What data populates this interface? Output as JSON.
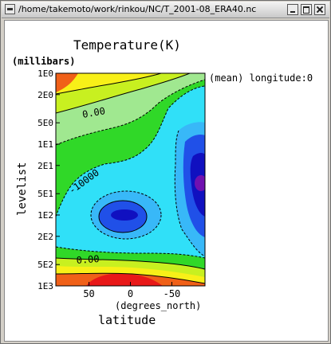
{
  "window": {
    "title": "/home/takemoto/work/rinkou/NC/T_2001-08_ERA40.nc",
    "icons": [
      "window-menu-icon",
      "minimize-icon",
      "maximize-icon",
      "close-icon"
    ]
  },
  "plot": {
    "title": "Temperature(K)",
    "y_unit": "(millibars)",
    "y_label": "levelist",
    "x_unit": "(degrees_north)",
    "x_label": "latitude",
    "note": "(mean) longitude:0",
    "contour_labels": [
      "0.00",
      "-10000",
      "0.00"
    ],
    "colors": {
      "orange": "#f06018",
      "yellow": "#f8f018",
      "yellowgreen": "#c8f020",
      "green": "#30d828",
      "lightgreen": "#a0e890",
      "cyan": "#30e0f8",
      "skyblue": "#38b8f8",
      "blue": "#2050e8",
      "navy": "#1010c0",
      "purple": "#7010b0",
      "red": "#e81818"
    }
  },
  "chart_data": {
    "type": "heatmap",
    "title": "Temperature(K)",
    "xlabel": "latitude",
    "ylabel": "levelist",
    "x_tick_labels": [
      "50",
      "0",
      "-50"
    ],
    "y_tick_labels": [
      "1E0",
      "2E0",
      "5E0",
      "1E1",
      "2E1",
      "5E1",
      "1E2",
      "2E2",
      "5E2",
      "1E3"
    ],
    "y_scale": "log",
    "ylim": [
      1000,
      1
    ],
    "xlim": [
      90,
      -90
    ],
    "contour_labels": [
      "0.00",
      "-10000",
      "0.00"
    ]
  }
}
